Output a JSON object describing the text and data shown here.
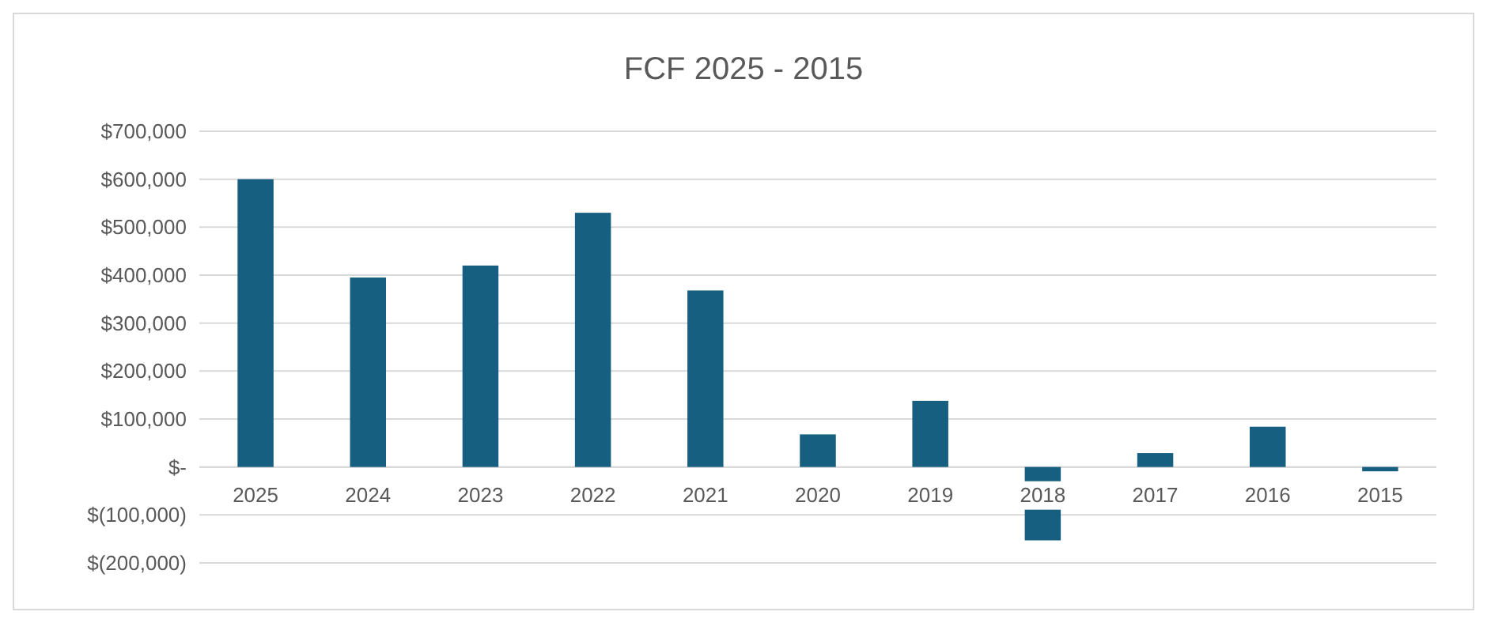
{
  "chart_data": {
    "type": "bar",
    "title": "FCF 2025 - 2015",
    "categories": [
      "2025",
      "2024",
      "2023",
      "2022",
      "2021",
      "2020",
      "2019",
      "2018",
      "2017",
      "2016",
      "2015"
    ],
    "values": [
      600000,
      395000,
      420000,
      530000,
      368000,
      68000,
      138000,
      -153000,
      29000,
      84000,
      -9000
    ],
    "color": "#165f80",
    "ylim": [
      -200000,
      700000
    ],
    "yticks": [
      {
        "value": -200000,
        "label": "$(200,000)"
      },
      {
        "value": -100000,
        "label": "$(100,000)"
      },
      {
        "value": 0,
        "label": "$-"
      },
      {
        "value": 100000,
        "label": "$100,000"
      },
      {
        "value": 200000,
        "label": "$200,000"
      },
      {
        "value": 300000,
        "label": "$300,000"
      },
      {
        "value": 400000,
        "label": "$400,000"
      },
      {
        "value": 500000,
        "label": "$500,000"
      },
      {
        "value": 600000,
        "label": "$600,000"
      },
      {
        "value": 700000,
        "label": "$700,000"
      }
    ],
    "grid": true
  }
}
